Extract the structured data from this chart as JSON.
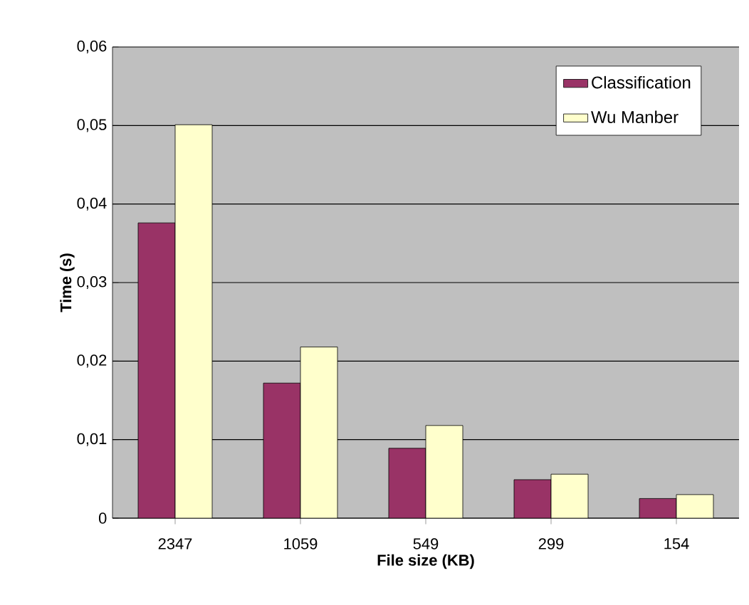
{
  "chart_data": {
    "type": "bar",
    "xlabel": "File size (KB)",
    "ylabel": "Time (s)",
    "categories": [
      "2347",
      "1059",
      "549",
      "299",
      "154"
    ],
    "series": [
      {
        "name": "Classification",
        "color": "#993366",
        "values": [
          0.0376,
          0.0172,
          0.0089,
          0.0049,
          0.0025
        ]
      },
      {
        "name": "Wu Manber",
        "color": "#ffffcc",
        "values": [
          0.0501,
          0.0218,
          0.0118,
          0.0056,
          0.003
        ]
      }
    ],
    "ylim": [
      0,
      0.06
    ],
    "yticks": [
      0,
      {
        "value": 0.01,
        "label": "0,01"
      },
      {
        "value": 0.02,
        "label": "0,02"
      },
      {
        "value": 0.03,
        "label": "0,03"
      },
      {
        "value": 0.04,
        "label": "0,04"
      },
      {
        "value": 0.05,
        "label": "0,05"
      },
      {
        "value": 0.06,
        "label": "0,06"
      }
    ],
    "grid": "y",
    "legend": "top right"
  }
}
